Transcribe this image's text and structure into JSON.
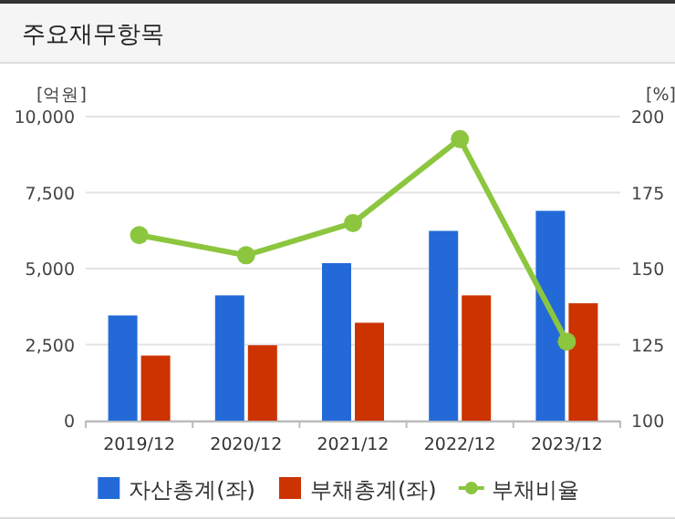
{
  "chart_data": {
    "type": "bar",
    "title": "주요재무항목",
    "categories": [
      "2019/12",
      "2020/12",
      "2021/12",
      "2022/12",
      "2023/12"
    ],
    "series": [
      {
        "name": "자산총계(좌)",
        "color": "#236ad8",
        "values": [
          3460,
          4120,
          5180,
          6240,
          6900
        ]
      },
      {
        "name": "부채총계(좌)",
        "color": "#cc3300",
        "values": [
          2140,
          2480,
          3220,
          4120,
          3860
        ]
      },
      {
        "name": "부채비율",
        "type": "line",
        "axis": "y2",
        "color": "#8cc63f",
        "marker": "circle",
        "values": [
          161,
          154.4,
          165,
          192.6,
          126
        ]
      }
    ],
    "ylabel": "[억원]",
    "y2label": "[%]",
    "ylim": [
      0,
      10000
    ],
    "yticks": [
      0,
      {
        "value": 2500,
        "label": "2,500"
      },
      {
        "value": 5000,
        "label": "5,000"
      },
      {
        "value": 7500,
        "label": "7,500"
      },
      {
        "value": 10000,
        "label": "10,000"
      }
    ],
    "y2lim": [
      100,
      200
    ],
    "y2ticks": [
      100,
      125,
      150,
      175,
      200
    ],
    "grid": "y",
    "legend": "bottom"
  }
}
